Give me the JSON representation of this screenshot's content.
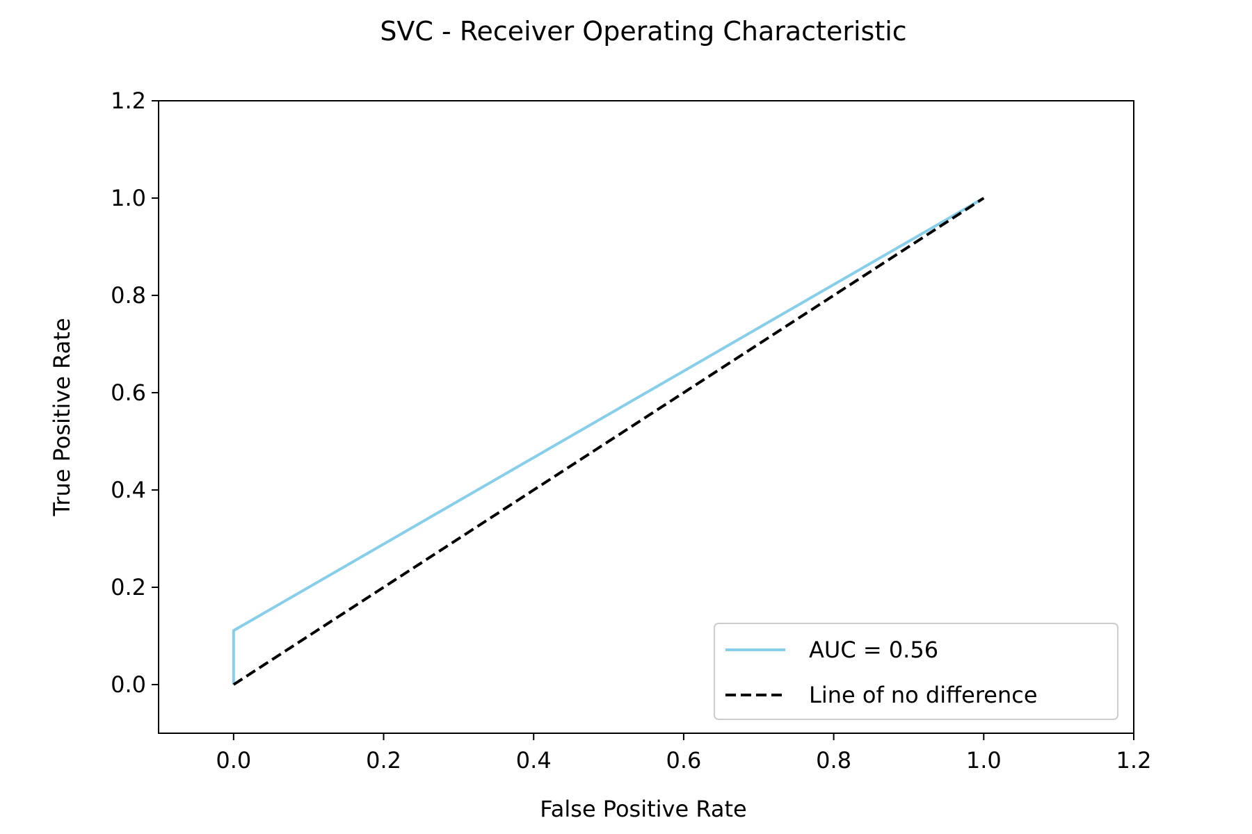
{
  "chart_data": {
    "type": "line",
    "title": "SVC - Receiver Operating Characteristic",
    "xlabel": "False Positive Rate",
    "ylabel": "True Positive Rate",
    "xlim": [
      -0.1,
      1.2
    ],
    "ylim": [
      -0.1,
      1.2
    ],
    "xticks": [
      0.0,
      0.2,
      0.4,
      0.6,
      0.8,
      1.0,
      1.2
    ],
    "yticks": [
      0.0,
      0.2,
      0.4,
      0.6,
      0.8,
      1.0,
      1.2
    ],
    "xtick_labels": [
      "0.0",
      "0.2",
      "0.4",
      "0.6",
      "0.8",
      "1.0",
      "1.2"
    ],
    "ytick_labels": [
      "0.0",
      "0.2",
      "0.4",
      "0.6",
      "0.8",
      "1.0",
      "1.2"
    ],
    "grid": false,
    "legend_position": "bottom-right",
    "series": [
      {
        "name": "AUC = 0.56",
        "color": "#87CEEB",
        "style": "solid",
        "x": [
          0.0,
          0.0,
          1.0
        ],
        "y": [
          0.0,
          0.111,
          1.0
        ]
      },
      {
        "name": "Line of no difference",
        "color": "#000000",
        "style": "dashed",
        "x": [
          0.0,
          1.0
        ],
        "y": [
          0.0,
          1.0
        ]
      }
    ]
  }
}
